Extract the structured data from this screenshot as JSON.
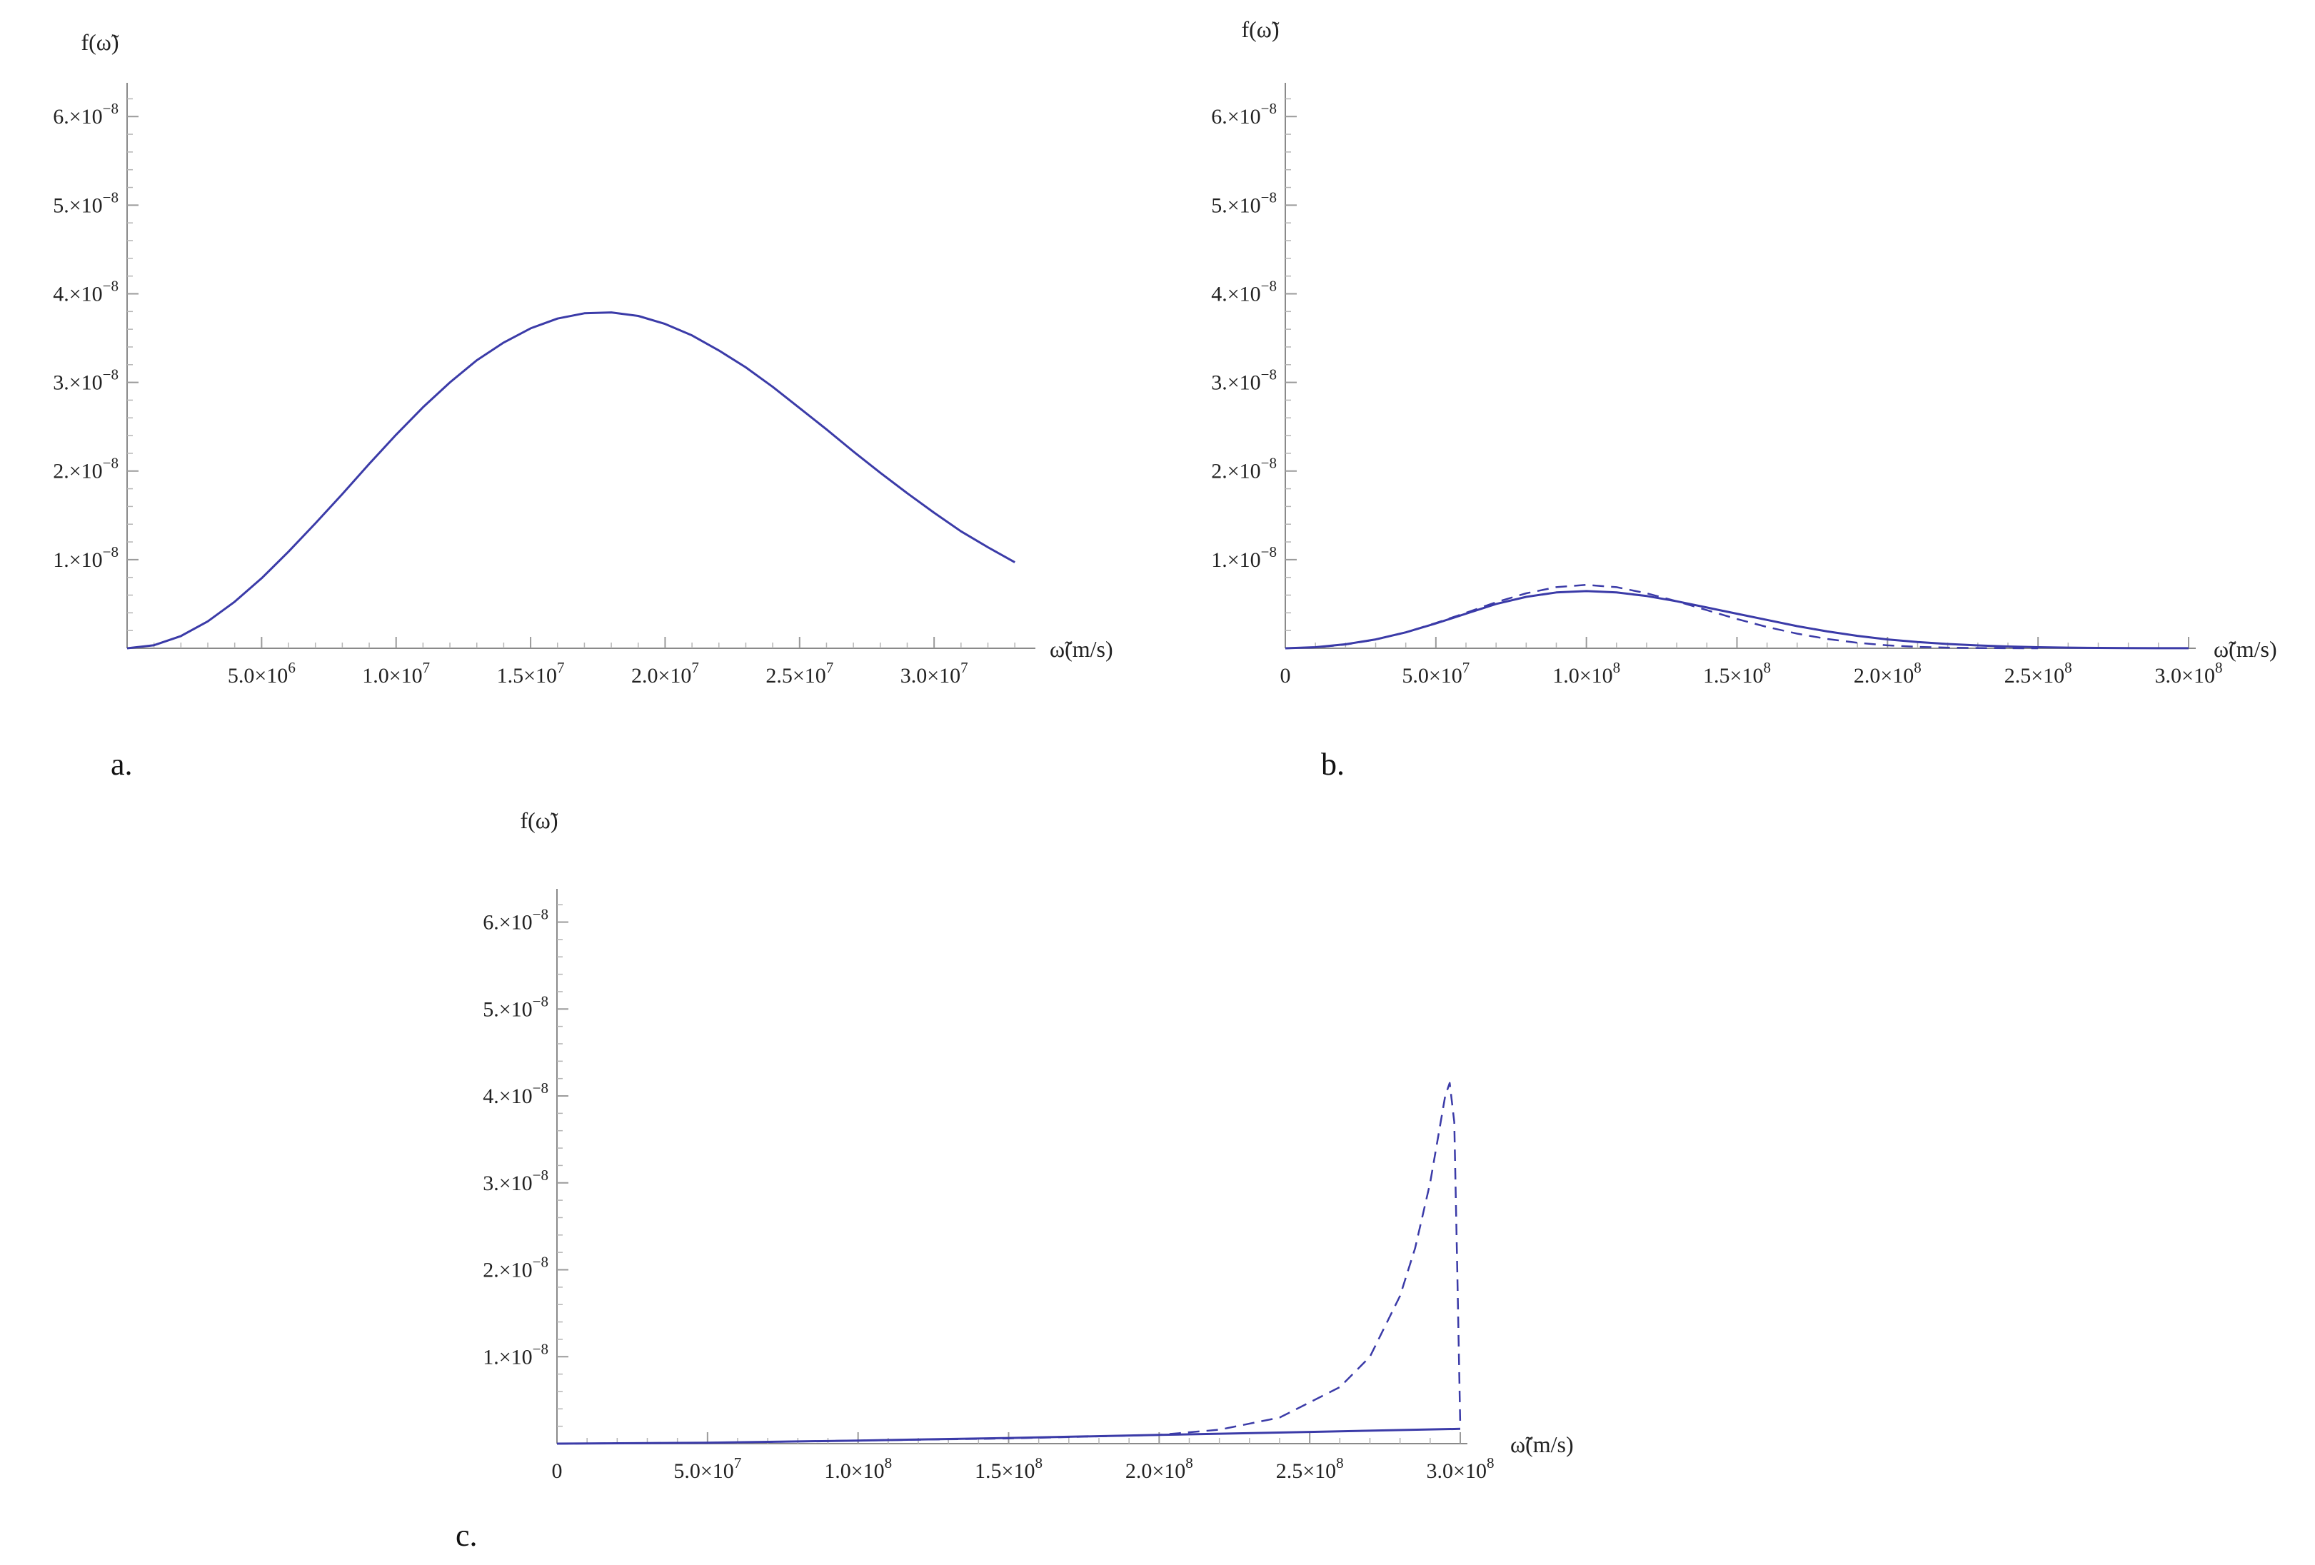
{
  "colors": {
    "curve": "#3b3ba8",
    "axis": "#8a8a8a"
  },
  "chart_data": [
    {
      "type": "line",
      "panel_label": "a.",
      "ylabel": "f(ω̃)",
      "xlabel": "ω̃(m/s)",
      "xlim": [
        0,
        33500000
      ],
      "ylim": [
        0,
        6.3e-08
      ],
      "x_ticks": [
        {
          "value": 5000000,
          "mant": "5.0",
          "exp": "6"
        },
        {
          "value": 10000000,
          "mant": "1.0",
          "exp": "7"
        },
        {
          "value": 15000000,
          "mant": "1.5",
          "exp": "7"
        },
        {
          "value": 20000000,
          "mant": "2.0",
          "exp": "7"
        },
        {
          "value": 25000000,
          "mant": "2.5",
          "exp": "7"
        },
        {
          "value": 30000000,
          "mant": "3.0",
          "exp": "7"
        }
      ],
      "y_ticks": [
        {
          "value": 1e-08,
          "mant": "1.",
          "exp": "−8"
        },
        {
          "value": 2e-08,
          "mant": "2.",
          "exp": "−8"
        },
        {
          "value": 3e-08,
          "mant": "3.",
          "exp": "−8"
        },
        {
          "value": 4e-08,
          "mant": "4.",
          "exp": "−8"
        },
        {
          "value": 5e-08,
          "mant": "5.",
          "exp": "−8"
        },
        {
          "value": 6e-08,
          "mant": "6.",
          "exp": "−8"
        }
      ],
      "series": [
        {
          "style": "solid",
          "x": [
            0,
            1000000,
            2000000,
            3000000,
            4000000,
            5000000,
            6000000,
            7000000,
            8000000,
            9000000,
            10000000,
            11000000,
            12000000,
            13000000,
            14000000,
            15000000,
            16000000,
            17000000,
            18000000,
            19000000,
            20000000,
            21000000,
            22000000,
            23000000,
            24000000,
            25000000,
            26000000,
            27000000,
            28000000,
            29000000,
            30000000,
            31000000,
            32000000,
            33000000
          ],
          "y": [
            0,
            3.5e-10,
            1.38e-09,
            3.04e-09,
            5.25e-09,
            7.9e-09,
            1.09e-08,
            1.41e-08,
            1.74e-08,
            2.08e-08,
            2.41e-08,
            2.72e-08,
            3e-08,
            3.25e-08,
            3.45e-08,
            3.61e-08,
            3.72e-08,
            3.78e-08,
            3.79e-08,
            3.75e-08,
            3.66e-08,
            3.53e-08,
            3.36e-08,
            3.17e-08,
            2.95e-08,
            2.71e-08,
            2.47e-08,
            2.22e-08,
            1.98e-08,
            1.75e-08,
            1.53e-08,
            1.32e-08,
            1.14e-08,
            9.7e-09
          ]
        }
      ]
    },
    {
      "type": "line",
      "panel_label": "b.",
      "ylabel": "f(ω̃)",
      "xlabel": "ω̃(m/s)",
      "xlim": [
        0,
        300000000
      ],
      "ylim": [
        0,
        6.3e-08
      ],
      "x_ticks": [
        {
          "value": 0,
          "mant": "0",
          "exp": ""
        },
        {
          "value": 50000000,
          "mant": "5.0",
          "exp": "7"
        },
        {
          "value": 100000000,
          "mant": "1.0",
          "exp": "8"
        },
        {
          "value": 150000000,
          "mant": "1.5",
          "exp": "8"
        },
        {
          "value": 200000000,
          "mant": "2.0",
          "exp": "8"
        },
        {
          "value": 250000000,
          "mant": "2.5",
          "exp": "8"
        },
        {
          "value": 300000000,
          "mant": "3.0",
          "exp": "8"
        }
      ],
      "y_ticks": [
        {
          "value": 1e-08,
          "mant": "1.",
          "exp": "−8"
        },
        {
          "value": 2e-08,
          "mant": "2.",
          "exp": "−8"
        },
        {
          "value": 3e-08,
          "mant": "3.",
          "exp": "−8"
        },
        {
          "value": 4e-08,
          "mant": "4.",
          "exp": "−8"
        },
        {
          "value": 5e-08,
          "mant": "5.",
          "exp": "−8"
        },
        {
          "value": 6e-08,
          "mant": "6.",
          "exp": "−8"
        }
      ],
      "series": [
        {
          "style": "solid",
          "x": [
            0,
            10000000,
            20000000,
            30000000,
            40000000,
            50000000,
            60000000,
            70000000,
            80000000,
            90000000,
            100000000,
            110000000,
            120000000,
            130000000,
            140000000,
            150000000,
            160000000,
            170000000,
            180000000,
            190000000,
            200000000,
            210000000,
            220000000,
            230000000,
            240000000,
            250000000,
            260000000,
            270000000,
            280000000,
            290000000,
            300000000
          ],
          "y": [
            0,
            1.2e-10,
            4.5e-10,
            1e-09,
            1.8e-09,
            2.8e-09,
            3.9e-09,
            5e-09,
            5.8e-09,
            6.3e-09,
            6.45e-09,
            6.3e-09,
            5.9e-09,
            5.3e-09,
            4.6e-09,
            3.9e-09,
            3.2e-09,
            2.5e-09,
            1.9e-09,
            1.4e-09,
            1e-09,
            7e-10,
            4.8e-10,
            3.2e-10,
            2e-10,
            1.2e-10,
            7e-11,
            4e-11,
            2e-11,
            1e-11,
            5e-12
          ]
        },
        {
          "style": "dashed",
          "x": [
            0,
            10000000,
            20000000,
            30000000,
            40000000,
            50000000,
            60000000,
            70000000,
            80000000,
            90000000,
            100000000,
            110000000,
            120000000,
            130000000,
            140000000,
            150000000,
            160000000,
            170000000,
            180000000,
            190000000,
            200000000,
            210000000,
            220000000,
            230000000,
            240000000,
            250000000
          ],
          "y": [
            0,
            1e-10,
            4.2e-10,
            9.8e-10,
            1.8e-09,
            2.85e-09,
            4e-09,
            5.2e-09,
            6.2e-09,
            6.9e-09,
            7.15e-09,
            6.9e-09,
            6.2e-09,
            5.3e-09,
            4.3e-09,
            3.3e-09,
            2.4e-09,
            1.65e-09,
            1.05e-09,
            6.2e-10,
            3.3e-10,
            1.6e-10,
            7e-11,
            3e-11,
            1e-11,
            0
          ]
        }
      ]
    },
    {
      "type": "line",
      "panel_label": "c.",
      "ylabel": "f(ω̃)",
      "xlabel": "ω̃(m/s)",
      "xlim": [
        0,
        300000000
      ],
      "ylim": [
        0,
        6.3e-08
      ],
      "x_ticks": [
        {
          "value": 0,
          "mant": "0",
          "exp": ""
        },
        {
          "value": 50000000,
          "mant": "5.0",
          "exp": "7"
        },
        {
          "value": 100000000,
          "mant": "1.0",
          "exp": "8"
        },
        {
          "value": 150000000,
          "mant": "1.5",
          "exp": "8"
        },
        {
          "value": 200000000,
          "mant": "2.0",
          "exp": "8"
        },
        {
          "value": 250000000,
          "mant": "2.5",
          "exp": "8"
        },
        {
          "value": 300000000,
          "mant": "3.0",
          "exp": "8"
        }
      ],
      "y_ticks": [
        {
          "value": 1e-08,
          "mant": "1.",
          "exp": "−8"
        },
        {
          "value": 2e-08,
          "mant": "2.",
          "exp": "−8"
        },
        {
          "value": 3e-08,
          "mant": "3.",
          "exp": "−8"
        },
        {
          "value": 4e-08,
          "mant": "4.",
          "exp": "−8"
        },
        {
          "value": 5e-08,
          "mant": "5.",
          "exp": "−8"
        },
        {
          "value": 6e-08,
          "mant": "6.",
          "exp": "−8"
        }
      ],
      "series": [
        {
          "style": "solid",
          "x": [
            0,
            50000000,
            100000000,
            150000000,
            200000000,
            250000000,
            300000000
          ],
          "y": [
            0,
            1e-10,
            3.5e-10,
            6.5e-10,
            1e-09,
            1.35e-09,
            1.7e-09
          ]
        },
        {
          "style": "dashed",
          "x": [
            0,
            50000000,
            100000000,
            150000000,
            200000000,
            220000000,
            240000000,
            260000000,
            270000000,
            280000000,
            285000000,
            290000000,
            293000000,
            295000000,
            296500000,
            298000000,
            299000000,
            300000000
          ],
          "y": [
            0,
            1e-10,
            3.5e-10,
            6e-10,
            1e-09,
            1.6e-09,
            3e-09,
            6.5e-09,
            1e-08,
            1.7e-08,
            2.25e-08,
            3e-08,
            3.6e-08,
            4e-08,
            4.15e-08,
            3.7e-08,
            2e-08,
            2e-09
          ]
        }
      ]
    }
  ]
}
